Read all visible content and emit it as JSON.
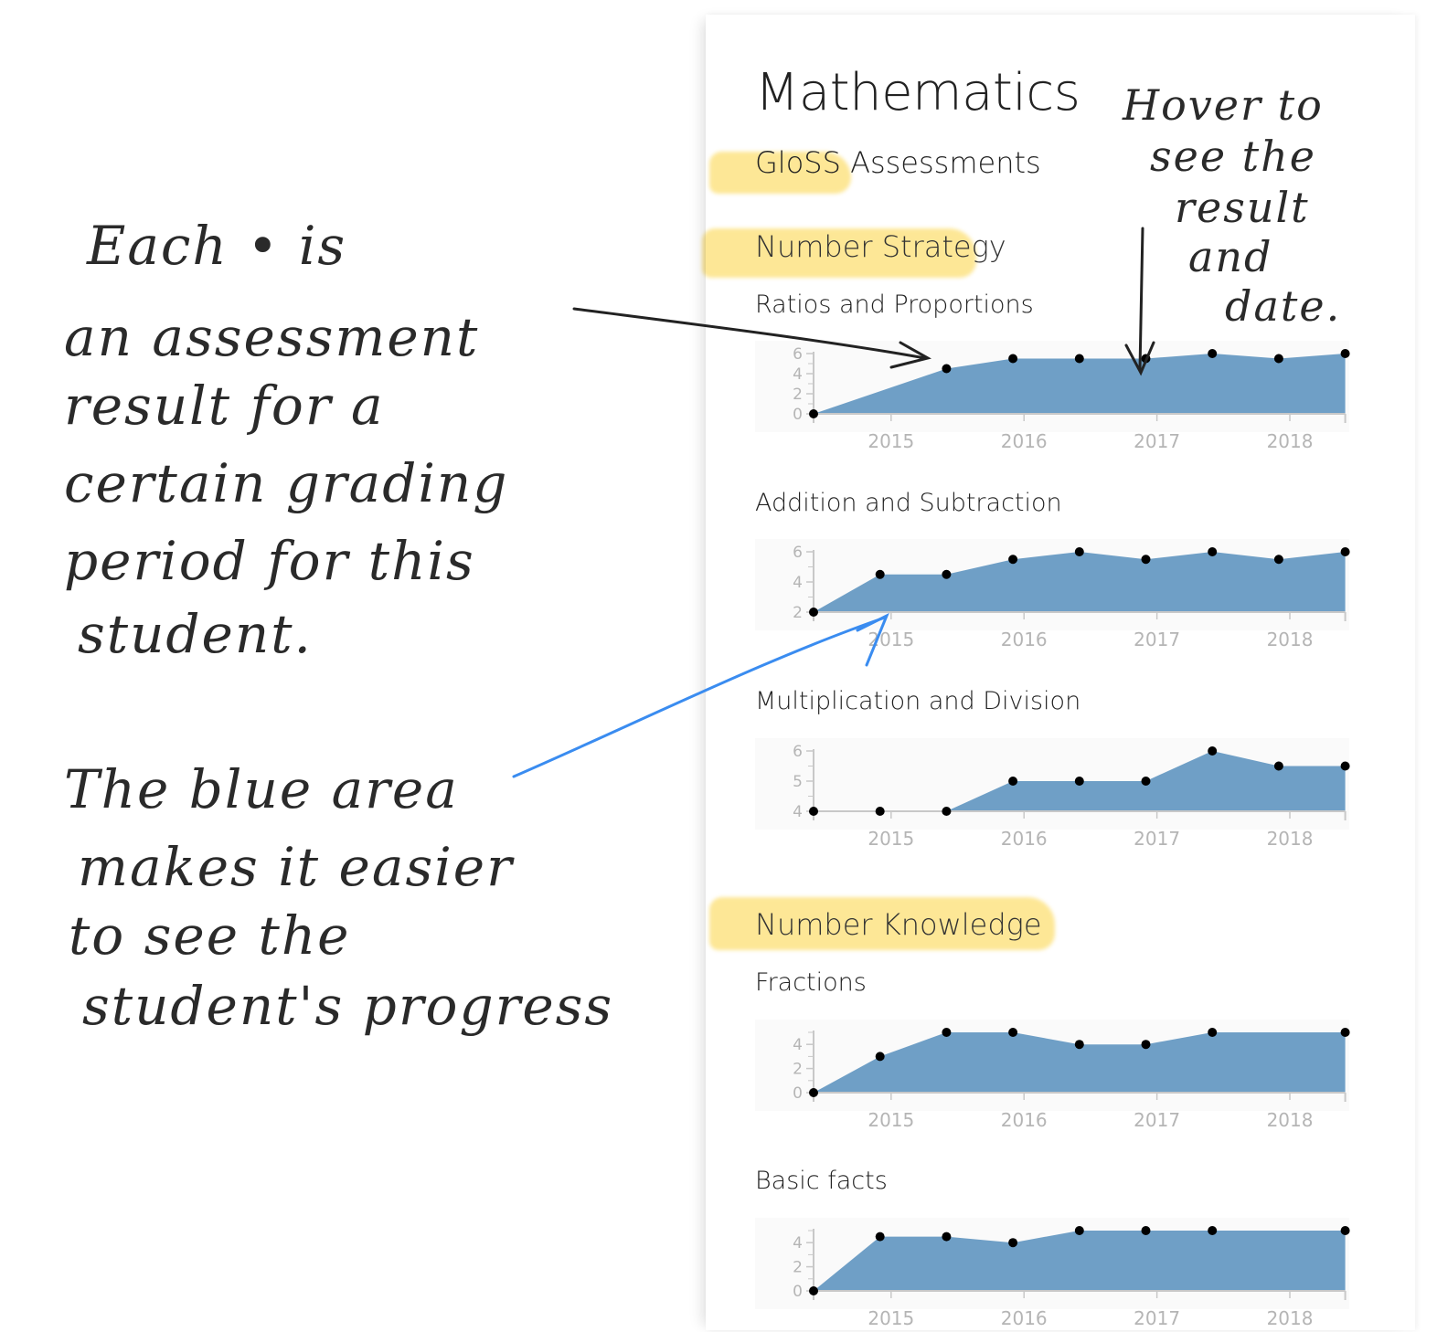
{
  "page": {
    "title": "Mathematics",
    "subtitle": "GloSS Assessments"
  },
  "colors": {
    "area": "#6f9fc6",
    "point": "#000000",
    "axis": "#c8c8c8",
    "highlight": "#fcd750",
    "annotation_blue": "#3a8cf0"
  },
  "sections": [
    {
      "title": "Number Strategy",
      "charts": [
        0,
        1,
        2
      ]
    },
    {
      "title": "Number Knowledge",
      "charts": [
        3,
        4
      ]
    }
  ],
  "chart_data": [
    {
      "type": "area",
      "title": "Ratios and Proportions",
      "ylim": [
        0,
        6
      ],
      "yticks": [
        "0",
        "2",
        "4",
        "6"
      ],
      "xticks": [
        "2015",
        "2016",
        "2017",
        "2018"
      ],
      "x": [
        "2014-06",
        "2015-06",
        "2015-12",
        "2016-06",
        "2016-12",
        "2017-06",
        "2017-12",
        "2018-06"
      ],
      "values": [
        0,
        4.5,
        5.5,
        5.5,
        5.5,
        6,
        5.5,
        6
      ]
    },
    {
      "type": "area",
      "title": "Addition and Subtraction",
      "ylim": [
        2,
        6
      ],
      "yticks": [
        "2",
        "4",
        "6"
      ],
      "xticks": [
        "2015",
        "2016",
        "2017",
        "2018"
      ],
      "x": [
        "2014-06",
        "2014-12",
        "2015-06",
        "2015-12",
        "2016-06",
        "2016-12",
        "2017-06",
        "2017-12",
        "2018-06"
      ],
      "values": [
        2,
        4.5,
        4.5,
        5.5,
        6,
        5.5,
        6,
        5.5,
        6
      ]
    },
    {
      "type": "area",
      "title": "Multiplication and Division",
      "ylim": [
        4,
        6
      ],
      "yticks": [
        "4",
        "5",
        "6"
      ],
      "xticks": [
        "2015",
        "2016",
        "2017",
        "2018"
      ],
      "x": [
        "2014-06",
        "2014-12",
        "2015-06",
        "2015-12",
        "2016-06",
        "2016-12",
        "2017-06",
        "2017-12",
        "2018-06"
      ],
      "values": [
        4,
        4,
        4,
        5,
        5,
        5,
        6,
        5.5,
        5.5
      ]
    },
    {
      "type": "area",
      "title": "Fractions",
      "ylim": [
        0,
        5
      ],
      "yticks": [
        "0",
        "2",
        "4"
      ],
      "xticks": [
        "2015",
        "2016",
        "2017",
        "2018"
      ],
      "x": [
        "2014-06",
        "2014-12",
        "2015-06",
        "2015-12",
        "2016-06",
        "2016-12",
        "2017-06",
        "2018-06"
      ],
      "values": [
        0,
        3,
        5,
        5,
        4,
        4,
        5,
        5
      ]
    },
    {
      "type": "area",
      "title": "Basic facts",
      "ylim": [
        0,
        5
      ],
      "yticks": [
        "0",
        "2",
        "4"
      ],
      "xticks": [
        "2015",
        "2016",
        "2017",
        "2018"
      ],
      "x": [
        "2014-06",
        "2014-12",
        "2015-06",
        "2015-12",
        "2016-06",
        "2016-12",
        "2017-06",
        "2018-06"
      ],
      "values": [
        0,
        4.5,
        4.5,
        4,
        5,
        5,
        5,
        5
      ]
    }
  ],
  "annotations": {
    "points_note": [
      "Each • is",
      "an assessment",
      "result for a",
      "certain grading",
      "period for this",
      "student."
    ],
    "area_note": [
      "The blue area",
      "makes it easier",
      "to see the",
      "student's progress"
    ],
    "hover_note": [
      "Hover to",
      "see the",
      "result",
      "and",
      "date."
    ]
  }
}
